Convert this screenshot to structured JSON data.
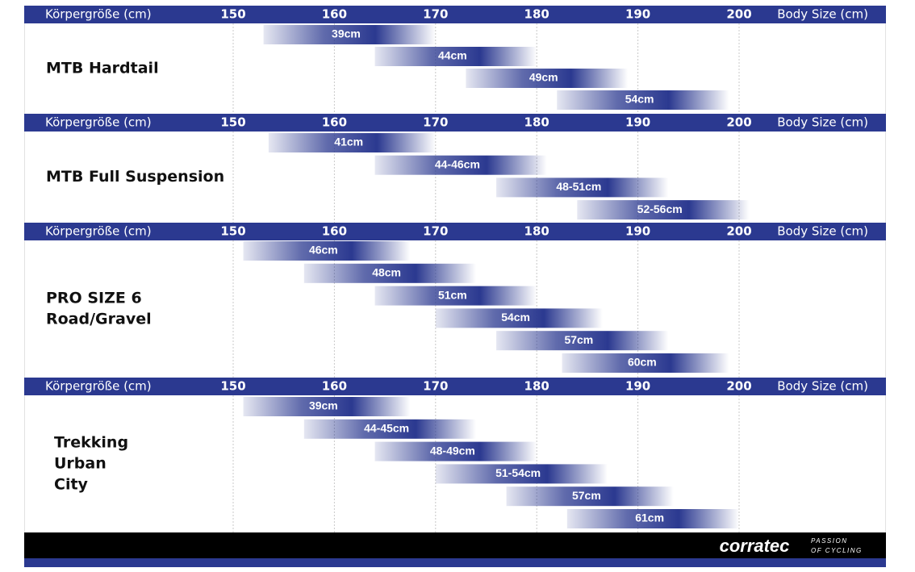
{
  "chart_data": [
    {
      "type": "range",
      "title": [
        "MTB Hardtail"
      ],
      "x_label_left": "Körpergröße (cm)",
      "x_label_right": "Body Size (cm)",
      "categories": [
        "39cm",
        "44cm",
        "49cm",
        "54cm"
      ],
      "low": [
        153,
        164,
        173,
        182
      ],
      "high": [
        170,
        180,
        189,
        199
      ],
      "xlim": [
        150,
        200
      ],
      "xticks": [
        150,
        160,
        170,
        180,
        190,
        200
      ],
      "color": "#2b3990",
      "grid": true
    },
    {
      "type": "range",
      "title": [
        "MTB Full Suspension"
      ],
      "x_label_left": "Körpergröße (cm)",
      "x_label_right": "Body Size (cm)",
      "categories": [
        "41cm",
        "44-46cm",
        "48-51cm",
        "52-56cm"
      ],
      "low": [
        153.5,
        164,
        176,
        184
      ],
      "high": [
        170,
        181,
        193,
        201
      ],
      "xlim": [
        150,
        200
      ],
      "xticks": [
        150,
        160,
        170,
        180,
        190,
        200
      ],
      "color": "#2b3990",
      "grid": true
    },
    {
      "type": "range",
      "title": [
        "PRO SIZE 6",
        "Road/Gravel"
      ],
      "x_label_left": "Körpergröße (cm)",
      "x_label_right": "Body Size (cm)",
      "categories": [
        "46cm",
        "48cm",
        "51cm",
        "54cm",
        "57cm",
        "60cm"
      ],
      "low": [
        151,
        157,
        164,
        170,
        176,
        182.5
      ],
      "high": [
        167.5,
        174,
        180,
        186.5,
        193,
        199
      ],
      "xlim": [
        150,
        200
      ],
      "xticks": [
        150,
        160,
        170,
        180,
        190,
        200
      ],
      "color": "#2b3990",
      "grid": true
    },
    {
      "type": "range",
      "title": [
        "Trekking",
        "Urban",
        "City"
      ],
      "x_label_left": "Körpergröße (cm)",
      "x_label_right": "Body Size (cm)",
      "categories": [
        "39cm",
        "44-45cm",
        "48-49cm",
        "51-54cm",
        "57cm",
        "61cm"
      ],
      "low": [
        151,
        157,
        164,
        170,
        177,
        183
      ],
      "high": [
        167.5,
        174,
        180,
        187,
        193.5,
        200
      ],
      "xlim": [
        150,
        200
      ],
      "xticks": [
        150,
        160,
        170,
        180,
        190,
        200
      ],
      "color": "#2b3990",
      "grid": true
    }
  ],
  "footer": {
    "brand": "corratec",
    "tagline": [
      "PASSION",
      "OF CYCLING"
    ]
  }
}
